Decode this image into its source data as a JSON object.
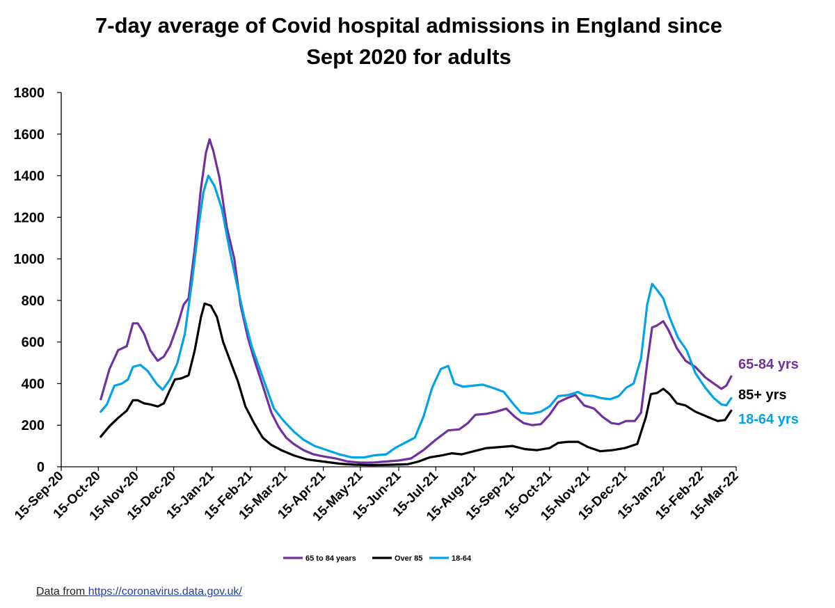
{
  "chart_data": {
    "type": "line",
    "title_line1": "7-day average of Covid hospital admissions in England since",
    "title_line2": "Sept 2020 for adults",
    "xlabel": "",
    "ylabel": "",
    "ylim": [
      0,
      1800
    ],
    "yticks": [
      "0",
      "200",
      "400",
      "600",
      "800",
      "1000",
      "1200",
      "1400",
      "1600",
      "1800"
    ],
    "xlim": [
      "2020-09-15",
      "2022-03-15"
    ],
    "xtick_labels": [
      "15-Sep-20",
      "15-Oct-20",
      "15-Nov-20",
      "15-Dec-20",
      "15-Jan-21",
      "15-Feb-21",
      "15-Mar-21",
      "15-Apr-21",
      "15-May-21",
      "15-Jun-21",
      "15-Jul-21",
      "15-Aug-21",
      "15-Sep-21",
      "15-Oct-21",
      "15-Nov-21",
      "15-Dec-21",
      "15-Jan-22",
      "15-Feb-22",
      "15-Mar-22"
    ],
    "xtick_dates": [
      "2020-09-15",
      "2020-10-15",
      "2020-11-15",
      "2020-12-15",
      "2021-01-15",
      "2021-02-15",
      "2021-03-15",
      "2021-04-15",
      "2021-05-15",
      "2021-06-15",
      "2021-07-15",
      "2021-08-15",
      "2021-09-15",
      "2021-10-15",
      "2021-11-15",
      "2021-12-15",
      "2022-01-15",
      "2022-02-15",
      "2022-03-15"
    ],
    "grid": false,
    "legend_position": "bottom",
    "series": [
      {
        "name": "65 to 84 years",
        "end_label": "65-84 yrs",
        "color": "#7030a0",
        "points": [
          [
            "2020-10-17",
            325
          ],
          [
            "2020-10-24",
            470
          ],
          [
            "2020-10-31",
            560
          ],
          [
            "2020-11-07",
            580
          ],
          [
            "2020-11-12",
            690
          ],
          [
            "2020-11-16",
            690
          ],
          [
            "2020-11-21",
            640
          ],
          [
            "2020-11-26",
            560
          ],
          [
            "2020-12-02",
            510
          ],
          [
            "2020-12-07",
            530
          ],
          [
            "2020-12-12",
            580
          ],
          [
            "2020-12-18",
            680
          ],
          [
            "2020-12-23",
            780
          ],
          [
            "2020-12-27",
            810
          ],
          [
            "2021-01-01",
            1050
          ],
          [
            "2021-01-06",
            1340
          ],
          [
            "2021-01-10",
            1510
          ],
          [
            "2021-01-13",
            1575
          ],
          [
            "2021-01-16",
            1520
          ],
          [
            "2021-01-21",
            1390
          ],
          [
            "2021-01-27",
            1150
          ],
          [
            "2021-02-02",
            1000
          ],
          [
            "2021-02-07",
            780
          ],
          [
            "2021-02-13",
            620
          ],
          [
            "2021-02-19",
            500
          ],
          [
            "2021-02-25",
            390
          ],
          [
            "2021-03-04",
            260
          ],
          [
            "2021-03-10",
            190
          ],
          [
            "2021-03-16",
            140
          ],
          [
            "2021-03-22",
            110
          ],
          [
            "2021-03-30",
            80
          ],
          [
            "2021-04-07",
            60
          ],
          [
            "2021-04-15",
            50
          ],
          [
            "2021-04-25",
            40
          ],
          [
            "2021-05-05",
            25
          ],
          [
            "2021-05-15",
            20
          ],
          [
            "2021-05-25",
            20
          ],
          [
            "2021-06-04",
            25
          ],
          [
            "2021-06-15",
            30
          ],
          [
            "2021-06-25",
            40
          ],
          [
            "2021-07-05",
            80
          ],
          [
            "2021-07-15",
            130
          ],
          [
            "2021-07-25",
            175
          ],
          [
            "2021-08-03",
            180
          ],
          [
            "2021-08-10",
            210
          ],
          [
            "2021-08-16",
            250
          ],
          [
            "2021-08-25",
            255
          ],
          [
            "2021-09-02",
            265
          ],
          [
            "2021-09-10",
            280
          ],
          [
            "2021-09-17",
            240
          ],
          [
            "2021-09-24",
            210
          ],
          [
            "2021-10-01",
            200
          ],
          [
            "2021-10-08",
            205
          ],
          [
            "2021-10-15",
            250
          ],
          [
            "2021-10-22",
            310
          ],
          [
            "2021-10-29",
            330
          ],
          [
            "2021-11-05",
            345
          ],
          [
            "2021-11-12",
            295
          ],
          [
            "2021-11-20",
            280
          ],
          [
            "2021-11-27",
            240
          ],
          [
            "2021-12-04",
            210
          ],
          [
            "2021-12-10",
            205
          ],
          [
            "2021-12-16",
            220
          ],
          [
            "2021-12-23",
            220
          ],
          [
            "2021-12-28",
            260
          ],
          [
            "2022-01-02",
            500
          ],
          [
            "2022-01-06",
            670
          ],
          [
            "2022-01-10",
            680
          ],
          [
            "2022-01-15",
            700
          ],
          [
            "2022-01-19",
            660
          ],
          [
            "2022-01-26",
            570
          ],
          [
            "2022-02-02",
            510
          ],
          [
            "2022-02-10",
            480
          ],
          [
            "2022-02-18",
            430
          ],
          [
            "2022-02-25",
            400
          ],
          [
            "2022-03-03",
            375
          ],
          [
            "2022-03-07",
            390
          ],
          [
            "2022-03-11",
            435
          ]
        ]
      },
      {
        "name": "Over 85",
        "end_label": "85+ yrs",
        "color": "#000000",
        "points": [
          [
            "2020-10-17",
            145
          ],
          [
            "2020-10-24",
            195
          ],
          [
            "2020-10-31",
            235
          ],
          [
            "2020-11-07",
            270
          ],
          [
            "2020-11-12",
            320
          ],
          [
            "2020-11-16",
            320
          ],
          [
            "2020-11-21",
            305
          ],
          [
            "2020-11-26",
            300
          ],
          [
            "2020-12-02",
            290
          ],
          [
            "2020-12-07",
            305
          ],
          [
            "2020-12-12",
            370
          ],
          [
            "2020-12-16",
            420
          ],
          [
            "2020-12-21",
            425
          ],
          [
            "2020-12-27",
            440
          ],
          [
            "2021-01-01",
            560
          ],
          [
            "2021-01-06",
            720
          ],
          [
            "2021-01-09",
            785
          ],
          [
            "2021-01-14",
            775
          ],
          [
            "2021-01-19",
            720
          ],
          [
            "2021-01-24",
            600
          ],
          [
            "2021-01-29",
            520
          ],
          [
            "2021-02-05",
            410
          ],
          [
            "2021-02-11",
            290
          ],
          [
            "2021-02-18",
            210
          ],
          [
            "2021-02-25",
            140
          ],
          [
            "2021-03-04",
            105
          ],
          [
            "2021-03-12",
            80
          ],
          [
            "2021-03-22",
            55
          ],
          [
            "2021-04-02",
            35
          ],
          [
            "2021-04-15",
            25
          ],
          [
            "2021-04-28",
            15
          ],
          [
            "2021-05-10",
            10
          ],
          [
            "2021-05-25",
            8
          ],
          [
            "2021-06-10",
            10
          ],
          [
            "2021-06-22",
            12
          ],
          [
            "2021-07-01",
            25
          ],
          [
            "2021-07-10",
            45
          ],
          [
            "2021-07-20",
            55
          ],
          [
            "2021-07-28",
            65
          ],
          [
            "2021-08-05",
            60
          ],
          [
            "2021-08-15",
            75
          ],
          [
            "2021-08-25",
            90
          ],
          [
            "2021-09-05",
            95
          ],
          [
            "2021-09-15",
            100
          ],
          [
            "2021-09-25",
            85
          ],
          [
            "2021-10-05",
            80
          ],
          [
            "2021-10-15",
            90
          ],
          [
            "2021-10-22",
            115
          ],
          [
            "2021-10-30",
            120
          ],
          [
            "2021-11-07",
            120
          ],
          [
            "2021-11-15",
            95
          ],
          [
            "2021-11-25",
            75
          ],
          [
            "2021-12-05",
            80
          ],
          [
            "2021-12-15",
            90
          ],
          [
            "2021-12-25",
            110
          ],
          [
            "2022-01-01",
            240
          ],
          [
            "2022-01-05",
            350
          ],
          [
            "2022-01-10",
            355
          ],
          [
            "2022-01-15",
            375
          ],
          [
            "2022-01-20",
            350
          ],
          [
            "2022-01-26",
            305
          ],
          [
            "2022-02-02",
            295
          ],
          [
            "2022-02-10",
            265
          ],
          [
            "2022-02-20",
            240
          ],
          [
            "2022-02-28",
            220
          ],
          [
            "2022-03-06",
            225
          ],
          [
            "2022-03-11",
            270
          ]
        ]
      },
      {
        "name": "18-64",
        "end_label": "18-64 yrs",
        "color": "#00a2e8",
        "points": [
          [
            "2020-10-17",
            265
          ],
          [
            "2020-10-22",
            300
          ],
          [
            "2020-10-28",
            390
          ],
          [
            "2020-11-03",
            400
          ],
          [
            "2020-11-08",
            420
          ],
          [
            "2020-11-12",
            480
          ],
          [
            "2020-11-18",
            490
          ],
          [
            "2020-11-24",
            460
          ],
          [
            "2020-12-01",
            400
          ],
          [
            "2020-12-06",
            370
          ],
          [
            "2020-12-12",
            420
          ],
          [
            "2020-12-18",
            500
          ],
          [
            "2020-12-24",
            640
          ],
          [
            "2020-12-30",
            900
          ],
          [
            "2021-01-04",
            1150
          ],
          [
            "2021-01-08",
            1320
          ],
          [
            "2021-01-12",
            1400
          ],
          [
            "2021-01-17",
            1350
          ],
          [
            "2021-01-23",
            1240
          ],
          [
            "2021-01-29",
            1050
          ],
          [
            "2021-02-04",
            880
          ],
          [
            "2021-02-10",
            720
          ],
          [
            "2021-02-16",
            580
          ],
          [
            "2021-02-22",
            480
          ],
          [
            "2021-02-28",
            380
          ],
          [
            "2021-03-06",
            280
          ],
          [
            "2021-03-14",
            220
          ],
          [
            "2021-03-22",
            170
          ],
          [
            "2021-03-30",
            130
          ],
          [
            "2021-04-08",
            100
          ],
          [
            "2021-04-18",
            80
          ],
          [
            "2021-04-28",
            60
          ],
          [
            "2021-05-08",
            45
          ],
          [
            "2021-05-18",
            45
          ],
          [
            "2021-05-26",
            55
          ],
          [
            "2021-06-05",
            60
          ],
          [
            "2021-06-12",
            90
          ],
          [
            "2021-06-20",
            115
          ],
          [
            "2021-06-28",
            140
          ],
          [
            "2021-07-05",
            240
          ],
          [
            "2021-07-12",
            380
          ],
          [
            "2021-07-19",
            470
          ],
          [
            "2021-07-25",
            485
          ],
          [
            "2021-07-30",
            400
          ],
          [
            "2021-08-06",
            385
          ],
          [
            "2021-08-14",
            390
          ],
          [
            "2021-08-22",
            395
          ],
          [
            "2021-08-30",
            380
          ],
          [
            "2021-09-08",
            360
          ],
          [
            "2021-09-16",
            300
          ],
          [
            "2021-09-22",
            260
          ],
          [
            "2021-09-30",
            255
          ],
          [
            "2021-10-08",
            265
          ],
          [
            "2021-10-15",
            290
          ],
          [
            "2021-10-22",
            340
          ],
          [
            "2021-10-30",
            345
          ],
          [
            "2021-11-07",
            360
          ],
          [
            "2021-11-12",
            345
          ],
          [
            "2021-11-20",
            340
          ],
          [
            "2021-11-26",
            330
          ],
          [
            "2021-12-03",
            325
          ],
          [
            "2021-12-10",
            340
          ],
          [
            "2021-12-16",
            380
          ],
          [
            "2021-12-22",
            400
          ],
          [
            "2021-12-28",
            520
          ],
          [
            "2022-01-02",
            780
          ],
          [
            "2022-01-06",
            880
          ],
          [
            "2022-01-10",
            850
          ],
          [
            "2022-01-15",
            810
          ],
          [
            "2022-01-20",
            720
          ],
          [
            "2022-01-27",
            620
          ],
          [
            "2022-02-03",
            560
          ],
          [
            "2022-02-10",
            450
          ],
          [
            "2022-02-18",
            380
          ],
          [
            "2022-02-25",
            330
          ],
          [
            "2022-03-03",
            300
          ],
          [
            "2022-03-07",
            295
          ],
          [
            "2022-03-11",
            330
          ]
        ]
      }
    ]
  },
  "source": {
    "prefix": "Data from ",
    "link_text": "https://coronavirus.data.gov.uk/"
  }
}
